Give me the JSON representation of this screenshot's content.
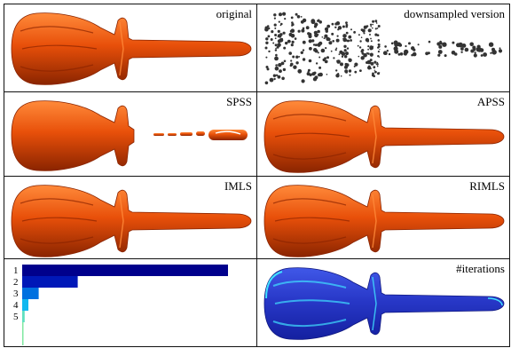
{
  "panels": [
    {
      "label": "original",
      "style": "solid"
    },
    {
      "label": "downsampled version",
      "style": "points"
    },
    {
      "label": "SPSS",
      "style": "broken"
    },
    {
      "label": "APSS",
      "style": "solid"
    },
    {
      "label": "IMLS",
      "style": "solid"
    },
    {
      "label": "RIMLS",
      "style": "solid"
    },
    {
      "label": "",
      "style": "histogram"
    },
    {
      "label": "#iterations",
      "style": "heatmap"
    }
  ],
  "chart_data": {
    "type": "bar",
    "orientation": "horizontal",
    "categories": [
      "1",
      "2",
      "3",
      "4",
      "5"
    ],
    "values": [
      100,
      27,
      8,
      3,
      1.2
    ],
    "colors": [
      "#00008c",
      "#0018b8",
      "#0070e0",
      "#10b8f0",
      "#60e0c0"
    ],
    "title": "",
    "xlabel": "",
    "ylabel": ""
  },
  "colors": {
    "surface": "#e8500a",
    "surface_dark": "#8a2400",
    "surface_light": "#ff8a3a",
    "heat_base": "#2838c8",
    "heat_hot": "#40e0ff",
    "points": "#333333"
  }
}
